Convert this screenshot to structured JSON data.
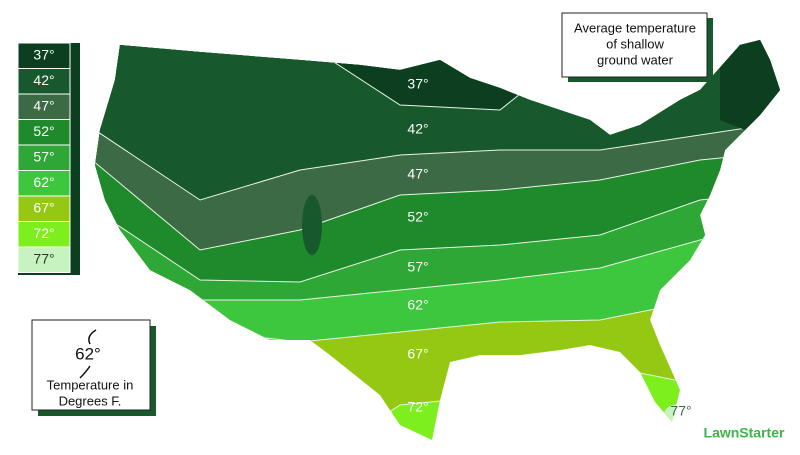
{
  "title": {
    "lines": [
      "Average temperature",
      "of shallow",
      "ground water"
    ]
  },
  "legend": [
    {
      "label": "37°",
      "color": "#0c3f20"
    },
    {
      "label": "42°",
      "color": "#17582c"
    },
    {
      "label": "47°",
      "color": "#3b6a45"
    },
    {
      "label": "52°",
      "color": "#1f8a2b"
    },
    {
      "label": "57°",
      "color": "#2ea737"
    },
    {
      "label": "62°",
      "color": "#3cc73f"
    },
    {
      "label": "67°",
      "color": "#95c812"
    },
    {
      "label": "72°",
      "color": "#7def1d"
    },
    {
      "label": "77°",
      "color": "#c6f3bf"
    }
  ],
  "map_labels": [
    "37°",
    "42°",
    "47°",
    "52°",
    "57°",
    "62°",
    "67°",
    "72°",
    "77°"
  ],
  "key": {
    "sample": "62°",
    "lines": [
      "Temperature in",
      "Degrees F."
    ]
  },
  "logo": "LawnStarter"
}
